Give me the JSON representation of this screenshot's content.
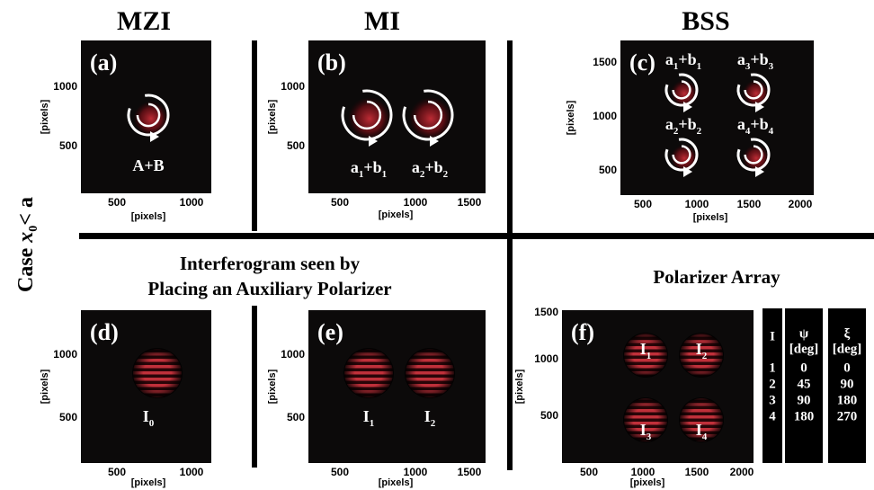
{
  "headers": [
    "MZI",
    "MI",
    "BSS"
  ],
  "case_label": {
    "text": "Case",
    "var": "x",
    "sub": "0",
    "rel": "< a"
  },
  "subtitles": {
    "interferogram": [
      "Interferogram seen by",
      "Placing an Auxiliary Polarizer"
    ],
    "polarizer": "Polarizer Array"
  },
  "panels": [
    {
      "label": "(a)",
      "xticks": [
        500,
        1000
      ],
      "yticks": [
        1000,
        500
      ],
      "xlabel": "[pixels]",
      "ylabel": "[pixels]",
      "spots": [
        [
          "A+B"
        ]
      ]
    },
    {
      "label": "(b)",
      "xticks": [
        500,
        1000,
        1500
      ],
      "yticks": [
        1000,
        500
      ],
      "xlabel": "[pixels]",
      "ylabel": "[pixels]",
      "spots": [
        [
          "a",
          "1",
          "+b",
          "1"
        ],
        [
          "a",
          "2",
          "+b",
          "2"
        ]
      ]
    },
    {
      "label": "(c)",
      "xticks": [
        500,
        1000,
        1500,
        2000
      ],
      "yticks": [
        1500,
        1000,
        500
      ],
      "xlabel": "[pixels]",
      "ylabel": "[pixels]",
      "spots": [
        [
          "a",
          "1",
          "+b",
          "1"
        ],
        [
          "a",
          "3",
          "+b",
          "3"
        ],
        [
          "a",
          "2",
          "+b",
          "2"
        ],
        [
          "a",
          "4",
          "+b",
          "4"
        ]
      ]
    },
    {
      "label": "(d)",
      "xticks": [
        500,
        1000
      ],
      "yticks": [
        1000,
        500
      ],
      "xlabel": "[pixels]",
      "ylabel": "[pixels]",
      "spots": [
        [
          "I",
          "0"
        ]
      ]
    },
    {
      "label": "(e)",
      "xticks": [
        500,
        1000,
        1500
      ],
      "yticks": [
        1000,
        500
      ],
      "xlabel": "[pixels]",
      "ylabel": "[pixels]",
      "spots": [
        [
          "I",
          "1"
        ],
        [
          "I",
          "2"
        ]
      ]
    },
    {
      "label": "(f)",
      "xticks": [
        500,
        1000,
        1500,
        2000
      ],
      "yticks": [
        1500,
        1000,
        500
      ],
      "xlabel": "[pixels]",
      "ylabel": "[pixels]",
      "spots": [
        [
          "I",
          "1"
        ],
        [
          "I",
          "2"
        ],
        [
          "I",
          "3"
        ],
        [
          "I",
          "4"
        ]
      ]
    }
  ],
  "table": {
    "columns": [
      {
        "header": "I",
        "rows": [
          1,
          2,
          3,
          4
        ]
      },
      {
        "header": "ψ",
        "unit": "[deg]",
        "rows": [
          0,
          45,
          90,
          180
        ]
      },
      {
        "header": "ξ",
        "unit": "[deg]",
        "rows": [
          0,
          90,
          180,
          270
        ]
      }
    ]
  }
}
